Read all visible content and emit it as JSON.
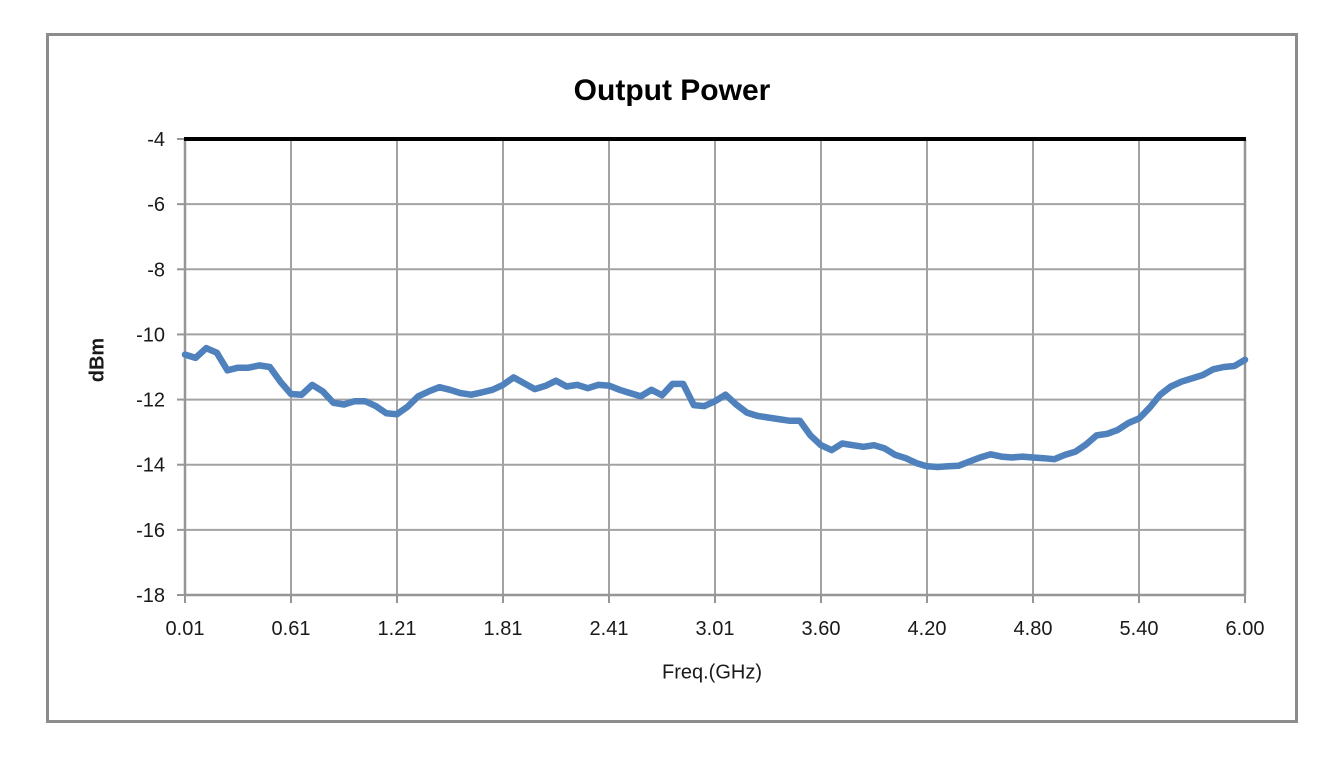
{
  "chart_data": {
    "type": "line",
    "title": "Output Power",
    "xlabel": "Freq.(GHz)",
    "ylabel": "dBm",
    "ylim": [
      -18,
      -4
    ],
    "grid": true,
    "legend": "none",
    "x_tick_labels": [
      "0.01",
      "0.61",
      "1.21",
      "1.81",
      "2.41",
      "3.01",
      "3.60",
      "4.20",
      "4.80",
      "5.40",
      "6.00"
    ],
    "y_ticks": [
      -4,
      -6,
      -8,
      -10,
      -12,
      -14,
      -16,
      -18
    ],
    "y_tick_labels": [
      "-4",
      "-6",
      "-8",
      "-10",
      "-12",
      "-14",
      "-16",
      "-18"
    ],
    "series": [
      {
        "name": "Output Power",
        "color": "#4F81BD",
        "x": [
          0.01,
          0.07,
          0.13,
          0.19,
          0.25,
          0.31,
          0.37,
          0.43,
          0.49,
          0.55,
          0.61,
          0.67,
          0.73,
          0.79,
          0.85,
          0.91,
          0.97,
          1.03,
          1.09,
          1.15,
          1.21,
          1.27,
          1.33,
          1.39,
          1.45,
          1.51,
          1.57,
          1.63,
          1.69,
          1.75,
          1.81,
          1.87,
          1.93,
          1.99,
          2.05,
          2.11,
          2.17,
          2.23,
          2.29,
          2.35,
          2.41,
          2.47,
          2.53,
          2.59,
          2.65,
          2.71,
          2.77,
          2.83,
          2.89,
          2.95,
          3.01,
          3.06,
          3.12,
          3.18,
          3.24,
          3.3,
          3.36,
          3.42,
          3.48,
          3.54,
          3.6,
          3.66,
          3.72,
          3.78,
          3.84,
          3.9,
          3.96,
          4.02,
          4.08,
          4.14,
          4.2,
          4.26,
          4.32,
          4.38,
          4.44,
          4.5,
          4.56,
          4.62,
          4.68,
          4.74,
          4.8,
          4.86,
          4.92,
          4.98,
          5.04,
          5.1,
          5.16,
          5.22,
          5.28,
          5.34,
          5.4,
          5.46,
          5.52,
          5.58,
          5.64,
          5.7,
          5.76,
          5.82,
          5.88,
          5.94,
          6.0
        ],
        "values": [
          -10.62,
          -10.72,
          -10.42,
          -10.56,
          -11.1,
          -11.02,
          -11.02,
          -10.95,
          -11.0,
          -11.45,
          -11.83,
          -11.85,
          -11.55,
          -11.75,
          -12.1,
          -12.15,
          -12.05,
          -12.05,
          -12.2,
          -12.42,
          -12.45,
          -12.22,
          -11.9,
          -11.75,
          -11.62,
          -11.7,
          -11.8,
          -11.85,
          -11.78,
          -11.7,
          -11.55,
          -11.32,
          -11.5,
          -11.68,
          -11.58,
          -11.42,
          -11.6,
          -11.55,
          -11.65,
          -11.55,
          -11.57,
          -11.7,
          -11.8,
          -11.9,
          -11.7,
          -11.87,
          -11.52,
          -11.52,
          -12.17,
          -12.2,
          -12.05,
          -11.85,
          -12.15,
          -12.4,
          -12.5,
          -12.55,
          -12.6,
          -12.65,
          -12.65,
          -13.1,
          -13.4,
          -13.55,
          -13.35,
          -13.4,
          -13.45,
          -13.4,
          -13.5,
          -13.7,
          -13.8,
          -13.95,
          -14.05,
          -14.07,
          -14.05,
          -14.03,
          -13.9,
          -13.78,
          -13.68,
          -13.75,
          -13.78,
          -13.75,
          -13.78,
          -13.8,
          -13.83,
          -13.7,
          -13.6,
          -13.38,
          -13.1,
          -13.05,
          -12.93,
          -12.72,
          -12.58,
          -12.25,
          -11.85,
          -11.6,
          -11.45,
          -11.35,
          -11.25,
          -11.07,
          -11.0,
          -10.97,
          -10.78
        ]
      }
    ]
  },
  "colors": {
    "line": "#4F81BD",
    "gridline": "#a3a3a3",
    "axis": "#969696",
    "frame": "#8c8c8c",
    "plot_top_border": "#000000",
    "text": "#1a1a1a"
  }
}
